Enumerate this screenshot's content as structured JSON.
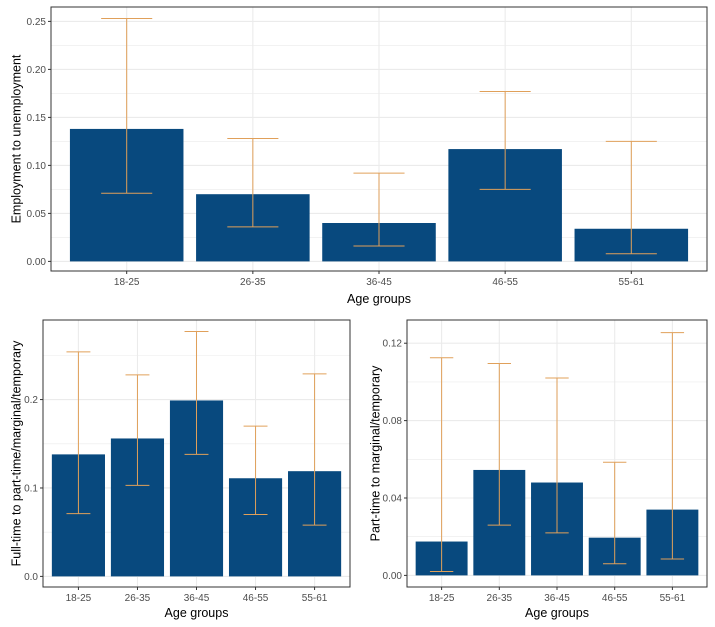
{
  "colors": {
    "bar": "#08497e",
    "errorbar": "#e0a05a",
    "grid": "#ebebeb",
    "panel_border": "#333333"
  },
  "chart_data": [
    {
      "type": "bar",
      "categories": [
        "18-25",
        "26-35",
        "36-45",
        "46-55",
        "55-61"
      ],
      "values": [
        0.138,
        0.07,
        0.04,
        0.117,
        0.034
      ],
      "error_low": [
        0.071,
        0.036,
        0.016,
        0.075,
        0.008
      ],
      "error_high": [
        0.253,
        0.128,
        0.092,
        0.177,
        0.125
      ],
      "xlabel": "Age groups",
      "ylabel": "Employment to unemployment",
      "yticks": [
        "0.00",
        "0.05",
        "0.10",
        "0.15",
        "0.20",
        "0.25"
      ],
      "ylim": [
        -0.01,
        0.265
      ],
      "grid": true
    },
    {
      "type": "bar",
      "categories": [
        "18-25",
        "26-35",
        "36-45",
        "46-55",
        "55-61"
      ],
      "values": [
        0.138,
        0.156,
        0.199,
        0.111,
        0.119
      ],
      "error_low": [
        0.071,
        0.103,
        0.138,
        0.07,
        0.058
      ],
      "error_high": [
        0.254,
        0.228,
        0.277,
        0.17,
        0.229
      ],
      "xlabel": "Age groups",
      "ylabel": "Full-time to part-time/marginal/temporary",
      "yticks": [
        "0.0",
        "0.1",
        "0.2"
      ],
      "ylim": [
        -0.012,
        0.29
      ],
      "grid": true
    },
    {
      "type": "bar",
      "categories": [
        "18-25",
        "26-35",
        "36-45",
        "46-55",
        "55-61"
      ],
      "values": [
        0.0175,
        0.0545,
        0.048,
        0.0195,
        0.034
      ],
      "error_low": [
        0.002,
        0.026,
        0.022,
        0.006,
        0.0085
      ],
      "error_high": [
        0.1125,
        0.1095,
        0.102,
        0.0585,
        0.1255
      ],
      "xlabel": "Age groups",
      "ylabel": "Part-time to marginal/temporary",
      "yticks": [
        "0.00",
        "0.04",
        "0.08",
        "0.12"
      ],
      "ylim": [
        -0.006,
        0.132
      ],
      "grid": true
    }
  ]
}
